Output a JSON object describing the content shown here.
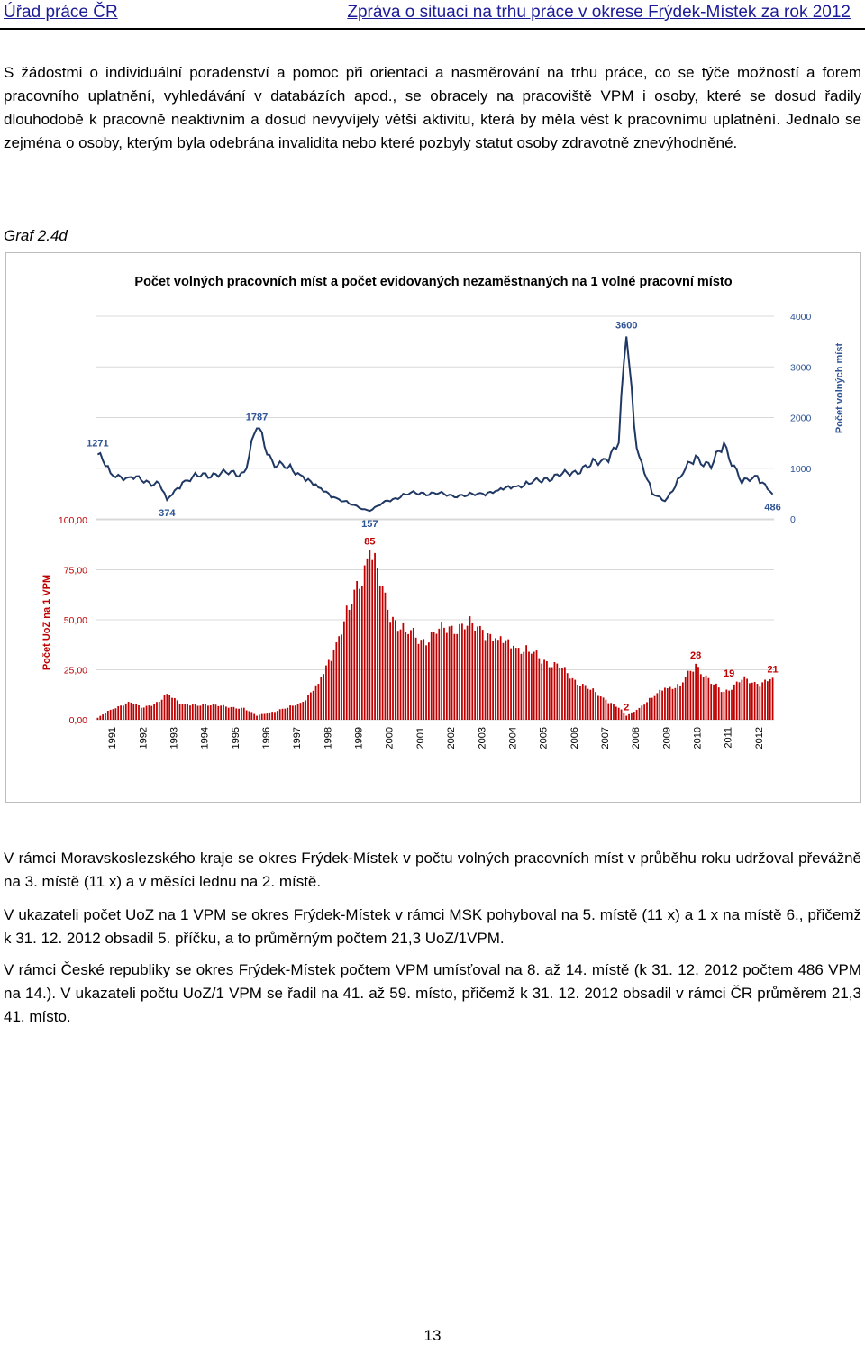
{
  "header": {
    "left": "Úřad práce ČR",
    "right": "Zpráva o situaci na trhu práce v okrese Frýdek-Místek za rok 2012"
  },
  "paragraphs": {
    "p1": "S žádostmi o individuální poradenství a pomoc při orientaci a nasměrování na trhu práce, co se týče možností a forem pracovního uplatnění, vyhledávání v databázích apod., se obracely na pracoviště VPM i osoby, které se dosud řadily dlouhodobě k pracovně neaktivním a dosud nevyvíjely větší aktivitu, která by měla vést k pracovnímu uplatnění. Jednalo se zejména o osoby, kterým byla odebrána invalidita nebo které pozbyly statut osoby zdravotně znevýhodněné.",
    "graf_label": "Graf 2.4d",
    "p2": "V rámci Moravskoslezského kraje se okres Frýdek-Místek v počtu volných pracovních míst v průběhu roku udržoval převážně na 3. místě (11 x) a v měsíci lednu na 2. místě.",
    "p3": "V ukazateli počet UoZ na 1 VPM se okres Frýdek-Místek v rámci MSK pohyboval na 5. místě (11 x) a 1 x na místě 6., přičemž k 31. 12. 2012 obsadil 5. příčku, a to průměrným počtem 21,3 UoZ/1VPM.",
    "p4": "V rámci České republiky se okres Frýdek-Místek počtem VPM umísťoval na 8. až 14. místě (k 31. 12. 2012 počtem 486 VPM na 14.). V ukazateli počtu UoZ/1 VPM se řadil na 41. až 59. místo, přičemž k 31. 12. 2012 obsadil v rámci ČR průměrem 21,3 41. místo."
  },
  "page_number": "13",
  "chart_data": {
    "type": "line+bar",
    "title": "Počet volných pracovních míst a počet evidovaných nezaměstnaných na 1 volné pracovní místo",
    "x_axis": {
      "labels": [
        "1991",
        "1992",
        "1993",
        "1994",
        "1995",
        "1996",
        "1997",
        "1998",
        "1999",
        "2000",
        "2001",
        "2002",
        "2003",
        "2004",
        "2005",
        "2006",
        "2007",
        "2008",
        "2009",
        "2010",
        "2011",
        "2012"
      ],
      "range": [
        "1991-01",
        "2012-12"
      ]
    },
    "upper_panel": {
      "kind": "line",
      "series_name": "Počet volných míst",
      "y_axis_label": "Počet volných míst",
      "y_ticks": [
        "4000",
        "3000",
        "2000",
        "1000",
        "0"
      ],
      "ylim": [
        0,
        4000
      ],
      "color": "#1f3864",
      "annotations": [
        {
          "label": "1271",
          "date": "1991-01",
          "value": 1271
        },
        {
          "label": "374",
          "date": "1993-04",
          "value": 374
        },
        {
          "label": "1787",
          "date": "1996-03",
          "value": 1787
        },
        {
          "label": "157",
          "date": "1999-11",
          "value": 157
        },
        {
          "label": "3600",
          "date": "2008-03",
          "value": 3600
        },
        {
          "label": "486",
          "date": "2012-12",
          "value": 486
        }
      ],
      "anchors": [
        [
          "1991-01",
          1271
        ],
        [
          "1991-06",
          900
        ],
        [
          "1992-01",
          820
        ],
        [
          "1992-06",
          760
        ],
        [
          "1993-01",
          700
        ],
        [
          "1993-04",
          374
        ],
        [
          "1993-10",
          720
        ],
        [
          "1994-04",
          840
        ],
        [
          "1994-10",
          900
        ],
        [
          "1995-04",
          880
        ],
        [
          "1995-10",
          920
        ],
        [
          "1996-03",
          1787
        ],
        [
          "1996-09",
          1150
        ],
        [
          "1997-03",
          1000
        ],
        [
          "1997-09",
          840
        ],
        [
          "1998-03",
          620
        ],
        [
          "1998-09",
          430
        ],
        [
          "1999-03",
          300
        ],
        [
          "1999-11",
          157
        ],
        [
          "2000-06",
          360
        ],
        [
          "2001-01",
          480
        ],
        [
          "2001-07",
          520
        ],
        [
          "2002-01",
          490
        ],
        [
          "2002-07",
          470
        ],
        [
          "2003-01",
          460
        ],
        [
          "2003-07",
          500
        ],
        [
          "2004-01",
          560
        ],
        [
          "2004-07",
          640
        ],
        [
          "2005-01",
          690
        ],
        [
          "2005-07",
          800
        ],
        [
          "2006-01",
          840
        ],
        [
          "2006-07",
          950
        ],
        [
          "2007-01",
          1050
        ],
        [
          "2007-07",
          1180
        ],
        [
          "2007-12",
          1500
        ],
        [
          "2008-03",
          3600
        ],
        [
          "2008-07",
          1400
        ],
        [
          "2009-01",
          500
        ],
        [
          "2009-06",
          350
        ],
        [
          "2009-12",
          820
        ],
        [
          "2010-06",
          1250
        ],
        [
          "2010-12",
          1000
        ],
        [
          "2011-05",
          1500
        ],
        [
          "2011-12",
          700
        ],
        [
          "2012-06",
          850
        ],
        [
          "2012-12",
          486
        ]
      ]
    },
    "lower_panel": {
      "kind": "bar",
      "series_name": "Počet UoZ na 1 VPM",
      "y_axis_label": "Počet UoZ na 1 VPM",
      "y_ticks": [
        "100,00",
        "75,00",
        "50,00",
        "25,00",
        "0,00"
      ],
      "ylim": [
        0,
        100
      ],
      "color": "#c00000",
      "annotations": [
        {
          "label": "85",
          "date": "1999-11",
          "value": 85
        },
        {
          "label": "2",
          "date": "2008-03",
          "value": 2
        },
        {
          "label": "28",
          "date": "2010-06",
          "value": 28
        },
        {
          "label": "19",
          "date": "2011-07",
          "value": 19
        },
        {
          "label": "21",
          "date": "2012-12",
          "value": 21
        }
      ],
      "anchors": [
        [
          "1991-01",
          1
        ],
        [
          "1991-06",
          5
        ],
        [
          "1992-01",
          9
        ],
        [
          "1992-06",
          6
        ],
        [
          "1993-01",
          9
        ],
        [
          "1993-04",
          13
        ],
        [
          "1993-10",
          8
        ],
        [
          "1994-04",
          7
        ],
        [
          "1994-10",
          8
        ],
        [
          "1995-04",
          6
        ],
        [
          "1995-10",
          6
        ],
        [
          "1996-03",
          2
        ],
        [
          "1996-09",
          4
        ],
        [
          "1997-03",
          6
        ],
        [
          "1997-09",
          9
        ],
        [
          "1998-03",
          18
        ],
        [
          "1998-09",
          35
        ],
        [
          "1999-03",
          55
        ],
        [
          "1999-11",
          85
        ],
        [
          "2000-06",
          55
        ],
        [
          "2001-01",
          44
        ],
        [
          "2001-07",
          40
        ],
        [
          "2002-01",
          43
        ],
        [
          "2002-07",
          47
        ],
        [
          "2003-01",
          47
        ],
        [
          "2003-07",
          45
        ],
        [
          "2004-01",
          40
        ],
        [
          "2004-07",
          37
        ],
        [
          "2005-01",
          34
        ],
        [
          "2005-07",
          30
        ],
        [
          "2006-01",
          26
        ],
        [
          "2006-07",
          20
        ],
        [
          "2007-01",
          15
        ],
        [
          "2007-07",
          10
        ],
        [
          "2007-12",
          6
        ],
        [
          "2008-03",
          2
        ],
        [
          "2008-07",
          5
        ],
        [
          "2009-01",
          11
        ],
        [
          "2009-06",
          16
        ],
        [
          "2009-12",
          17
        ],
        [
          "2010-06",
          28
        ],
        [
          "2010-12",
          18
        ],
        [
          "2011-05",
          14
        ],
        [
          "2011-12",
          20
        ],
        [
          "2012-06",
          18
        ],
        [
          "2012-12",
          21
        ]
      ]
    }
  }
}
